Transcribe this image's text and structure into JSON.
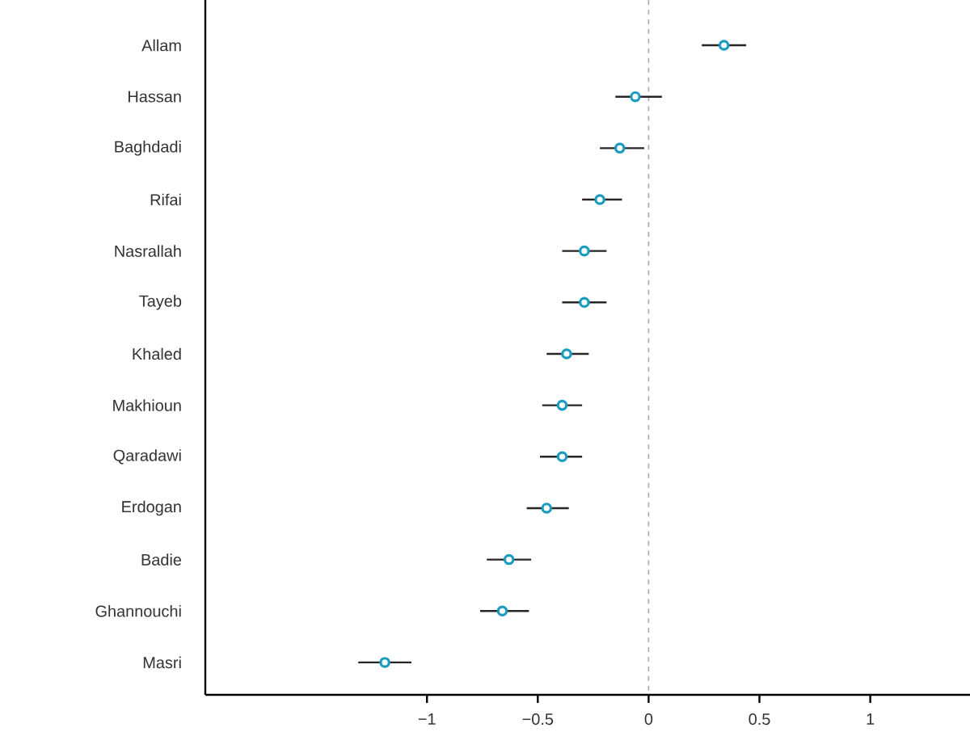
{
  "chart_data": {
    "type": "scatter",
    "orientation": "horizontal",
    "categories": [
      "Allam",
      "Hassan",
      "Baghdadi",
      "Rifai",
      "Nasrallah",
      "Tayeb",
      "Khaled",
      "Makhioun",
      "Qaradawi",
      "Erdogan",
      "Badie",
      "Ghannouchi",
      "Masri"
    ],
    "values": [
      0.34,
      -0.06,
      -0.13,
      -0.22,
      -0.29,
      -0.29,
      -0.37,
      -0.39,
      -0.39,
      -0.46,
      -0.63,
      -0.66,
      -1.19
    ],
    "errors": [
      [
        0.24,
        0.44
      ],
      [
        -0.15,
        0.06
      ],
      [
        -0.22,
        -0.02
      ],
      [
        -0.3,
        -0.12
      ],
      [
        -0.39,
        -0.19
      ],
      [
        -0.39,
        -0.19
      ],
      [
        -0.46,
        -0.27
      ],
      [
        -0.48,
        -0.3
      ],
      [
        -0.49,
        -0.3
      ],
      [
        -0.55,
        -0.36
      ],
      [
        -0.73,
        -0.53
      ],
      [
        -0.76,
        -0.54
      ],
      [
        -1.31,
        -1.07
      ]
    ],
    "color": "#1a9bc0",
    "xlim": [
      -2,
      1.45
    ],
    "xticks": [
      {
        "value": -1,
        "label": "−1"
      },
      {
        "value": -0.5,
        "label": "−0.5"
      },
      0,
      0.5,
      1
    ],
    "ref_lines": [
      {
        "axis": "x",
        "value": 0,
        "color": "#aaaaaa",
        "line_style": "dashed"
      }
    ]
  }
}
